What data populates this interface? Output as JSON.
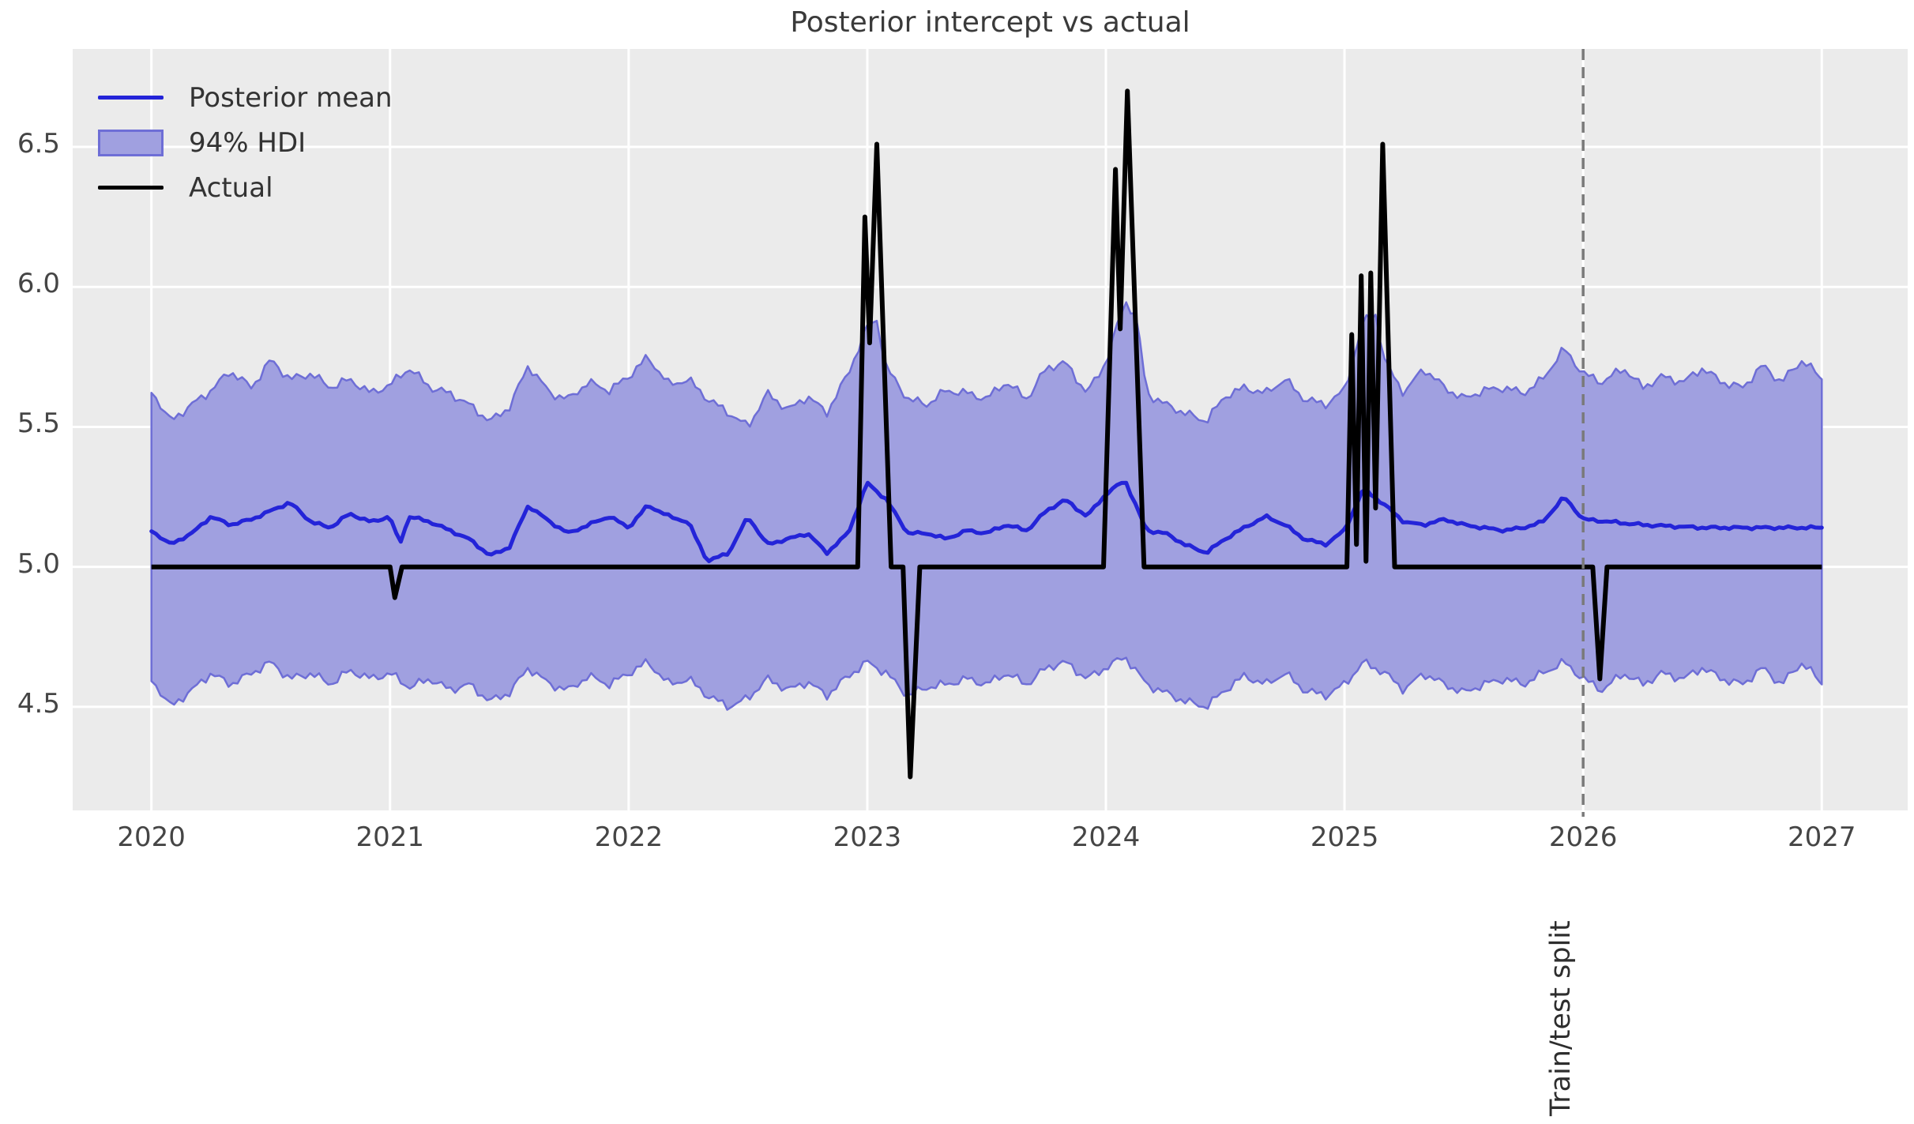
{
  "chart_data": {
    "type": "line",
    "title": "Posterior intercept vs actual",
    "xlabel": "",
    "ylabel": "",
    "xlim": [
      2019.67,
      2027.36
    ],
    "ylim": [
      4.13,
      6.85
    ],
    "grid": true,
    "plot_background": "#ebebeb",
    "gridline_color": "#ffffff",
    "xticks": [
      {
        "v": 2020,
        "label": "2020"
      },
      {
        "v": 2021,
        "label": "2021"
      },
      {
        "v": 2022,
        "label": "2022"
      },
      {
        "v": 2023,
        "label": "2023"
      },
      {
        "v": 2024,
        "label": "2024"
      },
      {
        "v": 2025,
        "label": "2025"
      },
      {
        "v": 2026,
        "label": "2026"
      },
      {
        "v": 2027,
        "label": "2027"
      }
    ],
    "yticks": [
      {
        "v": 6.5,
        "label": "6.5"
      },
      {
        "v": 6.0,
        "label": "6.0"
      },
      {
        "v": 5.5,
        "label": "5.5"
      },
      {
        "v": 5.0,
        "label": "5.0"
      },
      {
        "v": 4.5,
        "label": "4.5"
      }
    ],
    "annotation_vline": {
      "x": 2026.0,
      "label": "Train/test split",
      "color": "#7a7a7a",
      "style": "dashed"
    },
    "legend": {
      "position": "upper-left",
      "frame": false
    },
    "wiggle": {
      "band": 0.018,
      "mean": 0.006
    },
    "series": [
      {
        "name": "Posterior mean",
        "kind": "line",
        "color": "#2424d8",
        "width": 5,
        "points": [
          [
            2020.0,
            5.13
          ],
          [
            2020.08,
            5.08
          ],
          [
            2020.17,
            5.12
          ],
          [
            2020.25,
            5.18
          ],
          [
            2020.33,
            5.15
          ],
          [
            2020.42,
            5.17
          ],
          [
            2020.5,
            5.2
          ],
          [
            2020.58,
            5.23
          ],
          [
            2020.67,
            5.16
          ],
          [
            2020.75,
            5.14
          ],
          [
            2020.83,
            5.19
          ],
          [
            2020.92,
            5.16
          ],
          [
            2021.0,
            5.18
          ],
          [
            2021.04,
            5.08
          ],
          [
            2021.08,
            5.18
          ],
          [
            2021.17,
            5.16
          ],
          [
            2021.25,
            5.13
          ],
          [
            2021.33,
            5.1
          ],
          [
            2021.42,
            5.04
          ],
          [
            2021.5,
            5.07
          ],
          [
            2021.58,
            5.22
          ],
          [
            2021.67,
            5.16
          ],
          [
            2021.75,
            5.12
          ],
          [
            2021.83,
            5.15
          ],
          [
            2021.92,
            5.18
          ],
          [
            2022.0,
            5.14
          ],
          [
            2022.08,
            5.22
          ],
          [
            2022.17,
            5.18
          ],
          [
            2022.25,
            5.16
          ],
          [
            2022.33,
            5.02
          ],
          [
            2022.42,
            5.05
          ],
          [
            2022.5,
            5.18
          ],
          [
            2022.58,
            5.08
          ],
          [
            2022.67,
            5.1
          ],
          [
            2022.75,
            5.12
          ],
          [
            2022.83,
            5.05
          ],
          [
            2022.92,
            5.12
          ],
          [
            2023.0,
            5.3
          ],
          [
            2023.08,
            5.24
          ],
          [
            2023.17,
            5.12
          ],
          [
            2023.25,
            5.12
          ],
          [
            2023.33,
            5.1
          ],
          [
            2023.42,
            5.13
          ],
          [
            2023.5,
            5.12
          ],
          [
            2023.58,
            5.15
          ],
          [
            2023.67,
            5.13
          ],
          [
            2023.75,
            5.2
          ],
          [
            2023.83,
            5.24
          ],
          [
            2023.92,
            5.18
          ],
          [
            2024.0,
            5.26
          ],
          [
            2024.08,
            5.31
          ],
          [
            2024.17,
            5.13
          ],
          [
            2024.25,
            5.12
          ],
          [
            2024.33,
            5.08
          ],
          [
            2024.42,
            5.05
          ],
          [
            2024.5,
            5.1
          ],
          [
            2024.58,
            5.14
          ],
          [
            2024.67,
            5.18
          ],
          [
            2024.75,
            5.15
          ],
          [
            2024.83,
            5.1
          ],
          [
            2024.92,
            5.08
          ],
          [
            2025.0,
            5.13
          ],
          [
            2025.08,
            5.28
          ],
          [
            2025.17,
            5.22
          ],
          [
            2025.25,
            5.16
          ],
          [
            2025.33,
            5.15
          ],
          [
            2025.42,
            5.17
          ],
          [
            2025.5,
            5.15
          ],
          [
            2025.58,
            5.14
          ],
          [
            2025.67,
            5.13
          ],
          [
            2025.75,
            5.14
          ],
          [
            2025.83,
            5.16
          ],
          [
            2025.92,
            5.25
          ],
          [
            2026.0,
            5.17
          ],
          [
            2026.25,
            5.15
          ],
          [
            2026.5,
            5.14
          ],
          [
            2026.75,
            5.14
          ],
          [
            2027.0,
            5.14
          ]
        ]
      },
      {
        "name": "94% HDI",
        "kind": "band",
        "fill": "#a0a0e0",
        "edge": "#6e6ed6",
        "upper": [
          [
            2020.0,
            5.63
          ],
          [
            2020.08,
            5.52
          ],
          [
            2020.17,
            5.58
          ],
          [
            2020.25,
            5.63
          ],
          [
            2020.33,
            5.7
          ],
          [
            2020.42,
            5.64
          ],
          [
            2020.5,
            5.74
          ],
          [
            2020.58,
            5.67
          ],
          [
            2020.67,
            5.69
          ],
          [
            2020.75,
            5.64
          ],
          [
            2020.83,
            5.67
          ],
          [
            2020.92,
            5.62
          ],
          [
            2021.0,
            5.65
          ],
          [
            2021.08,
            5.71
          ],
          [
            2021.17,
            5.64
          ],
          [
            2021.25,
            5.62
          ],
          [
            2021.33,
            5.58
          ],
          [
            2021.42,
            5.52
          ],
          [
            2021.5,
            5.57
          ],
          [
            2021.58,
            5.72
          ],
          [
            2021.67,
            5.62
          ],
          [
            2021.75,
            5.6
          ],
          [
            2021.83,
            5.66
          ],
          [
            2021.92,
            5.63
          ],
          [
            2022.0,
            5.68
          ],
          [
            2022.08,
            5.75
          ],
          [
            2022.17,
            5.65
          ],
          [
            2022.25,
            5.67
          ],
          [
            2022.33,
            5.6
          ],
          [
            2022.42,
            5.55
          ],
          [
            2022.5,
            5.5
          ],
          [
            2022.58,
            5.62
          ],
          [
            2022.67,
            5.56
          ],
          [
            2022.75,
            5.61
          ],
          [
            2022.83,
            5.55
          ],
          [
            2022.92,
            5.69
          ],
          [
            2023.0,
            5.86
          ],
          [
            2023.04,
            5.88
          ],
          [
            2023.08,
            5.71
          ],
          [
            2023.17,
            5.6
          ],
          [
            2023.25,
            5.58
          ],
          [
            2023.33,
            5.63
          ],
          [
            2023.42,
            5.62
          ],
          [
            2023.5,
            5.6
          ],
          [
            2023.58,
            5.66
          ],
          [
            2023.67,
            5.6
          ],
          [
            2023.75,
            5.71
          ],
          [
            2023.83,
            5.73
          ],
          [
            2023.92,
            5.62
          ],
          [
            2024.0,
            5.73
          ],
          [
            2024.08,
            5.95
          ],
          [
            2024.13,
            5.89
          ],
          [
            2024.17,
            5.62
          ],
          [
            2024.25,
            5.58
          ],
          [
            2024.33,
            5.55
          ],
          [
            2024.42,
            5.52
          ],
          [
            2024.5,
            5.61
          ],
          [
            2024.58,
            5.64
          ],
          [
            2024.67,
            5.62
          ],
          [
            2024.75,
            5.67
          ],
          [
            2024.83,
            5.6
          ],
          [
            2024.92,
            5.58
          ],
          [
            2025.0,
            5.63
          ],
          [
            2025.08,
            5.88
          ],
          [
            2025.13,
            5.9
          ],
          [
            2025.17,
            5.73
          ],
          [
            2025.25,
            5.62
          ],
          [
            2025.33,
            5.71
          ],
          [
            2025.42,
            5.64
          ],
          [
            2025.5,
            5.6
          ],
          [
            2025.58,
            5.63
          ],
          [
            2025.67,
            5.64
          ],
          [
            2025.75,
            5.62
          ],
          [
            2025.83,
            5.67
          ],
          [
            2025.92,
            5.78
          ],
          [
            2026.0,
            5.69
          ],
          [
            2026.08,
            5.66
          ],
          [
            2026.17,
            5.71
          ],
          [
            2026.25,
            5.64
          ],
          [
            2026.33,
            5.68
          ],
          [
            2026.42,
            5.66
          ],
          [
            2026.5,
            5.71
          ],
          [
            2026.58,
            5.66
          ],
          [
            2026.67,
            5.64
          ],
          [
            2026.75,
            5.72
          ],
          [
            2026.83,
            5.66
          ],
          [
            2026.92,
            5.74
          ],
          [
            2027.0,
            5.67
          ]
        ],
        "lower": [
          [
            2020.0,
            4.6
          ],
          [
            2020.08,
            4.5
          ],
          [
            2020.17,
            4.56
          ],
          [
            2020.25,
            4.62
          ],
          [
            2020.33,
            4.58
          ],
          [
            2020.42,
            4.62
          ],
          [
            2020.5,
            4.66
          ],
          [
            2020.58,
            4.6
          ],
          [
            2020.67,
            4.62
          ],
          [
            2020.75,
            4.58
          ],
          [
            2020.83,
            4.63
          ],
          [
            2020.92,
            4.6
          ],
          [
            2021.0,
            4.62
          ],
          [
            2021.08,
            4.57
          ],
          [
            2021.17,
            4.6
          ],
          [
            2021.25,
            4.56
          ],
          [
            2021.33,
            4.58
          ],
          [
            2021.42,
            4.52
          ],
          [
            2021.5,
            4.55
          ],
          [
            2021.58,
            4.64
          ],
          [
            2021.67,
            4.58
          ],
          [
            2021.75,
            4.56
          ],
          [
            2021.83,
            4.61
          ],
          [
            2021.92,
            4.58
          ],
          [
            2022.0,
            4.62
          ],
          [
            2022.08,
            4.66
          ],
          [
            2022.17,
            4.58
          ],
          [
            2022.25,
            4.6
          ],
          [
            2022.33,
            4.54
          ],
          [
            2022.42,
            4.5
          ],
          [
            2022.5,
            4.53
          ],
          [
            2022.58,
            4.6
          ],
          [
            2022.67,
            4.56
          ],
          [
            2022.75,
            4.59
          ],
          [
            2022.83,
            4.54
          ],
          [
            2022.92,
            4.61
          ],
          [
            2023.0,
            4.66
          ],
          [
            2023.08,
            4.62
          ],
          [
            2023.17,
            4.54
          ],
          [
            2023.25,
            4.57
          ],
          [
            2023.33,
            4.58
          ],
          [
            2023.42,
            4.6
          ],
          [
            2023.5,
            4.58
          ],
          [
            2023.58,
            4.62
          ],
          [
            2023.67,
            4.58
          ],
          [
            2023.75,
            4.64
          ],
          [
            2023.83,
            4.66
          ],
          [
            2023.92,
            4.6
          ],
          [
            2024.0,
            4.64
          ],
          [
            2024.08,
            4.68
          ],
          [
            2024.17,
            4.58
          ],
          [
            2024.25,
            4.55
          ],
          [
            2024.33,
            4.52
          ],
          [
            2024.42,
            4.5
          ],
          [
            2024.5,
            4.56
          ],
          [
            2024.58,
            4.61
          ],
          [
            2024.67,
            4.58
          ],
          [
            2024.75,
            4.62
          ],
          [
            2024.83,
            4.56
          ],
          [
            2024.92,
            4.54
          ],
          [
            2025.0,
            4.58
          ],
          [
            2025.08,
            4.66
          ],
          [
            2025.17,
            4.62
          ],
          [
            2025.25,
            4.56
          ],
          [
            2025.33,
            4.62
          ],
          [
            2025.42,
            4.58
          ],
          [
            2025.5,
            4.55
          ],
          [
            2025.58,
            4.58
          ],
          [
            2025.67,
            4.6
          ],
          [
            2025.75,
            4.58
          ],
          [
            2025.83,
            4.62
          ],
          [
            2025.92,
            4.66
          ],
          [
            2026.0,
            4.6
          ],
          [
            2026.08,
            4.56
          ],
          [
            2026.17,
            4.62
          ],
          [
            2026.25,
            4.58
          ],
          [
            2026.33,
            4.62
          ],
          [
            2026.42,
            4.6
          ],
          [
            2026.5,
            4.64
          ],
          [
            2026.58,
            4.6
          ],
          [
            2026.67,
            4.58
          ],
          [
            2026.75,
            4.64
          ],
          [
            2026.83,
            4.58
          ],
          [
            2026.92,
            4.66
          ],
          [
            2027.0,
            4.58
          ]
        ]
      },
      {
        "name": "Actual",
        "kind": "line",
        "color": "#000000",
        "width": 6,
        "points": [
          [
            2020.0,
            5.0
          ],
          [
            2021.0,
            5.0
          ],
          [
            2021.02,
            4.89
          ],
          [
            2021.05,
            5.0
          ],
          [
            2022.96,
            5.0
          ],
          [
            2022.99,
            6.25
          ],
          [
            2023.01,
            5.8
          ],
          [
            2023.04,
            6.51
          ],
          [
            2023.1,
            5.0
          ],
          [
            2023.15,
            5.0
          ],
          [
            2023.18,
            4.25
          ],
          [
            2023.22,
            5.0
          ],
          [
            2023.99,
            5.0
          ],
          [
            2024.04,
            6.42
          ],
          [
            2024.06,
            5.85
          ],
          [
            2024.09,
            6.7
          ],
          [
            2024.16,
            5.0
          ],
          [
            2025.01,
            5.0
          ],
          [
            2025.03,
            5.83
          ],
          [
            2025.05,
            5.08
          ],
          [
            2025.07,
            6.04
          ],
          [
            2025.09,
            5.02
          ],
          [
            2025.11,
            6.05
          ],
          [
            2025.13,
            5.21
          ],
          [
            2025.16,
            6.51
          ],
          [
            2025.21,
            5.0
          ],
          [
            2026.04,
            5.0
          ],
          [
            2026.07,
            4.6
          ],
          [
            2026.1,
            5.0
          ],
          [
            2027.0,
            5.0
          ]
        ]
      }
    ]
  }
}
